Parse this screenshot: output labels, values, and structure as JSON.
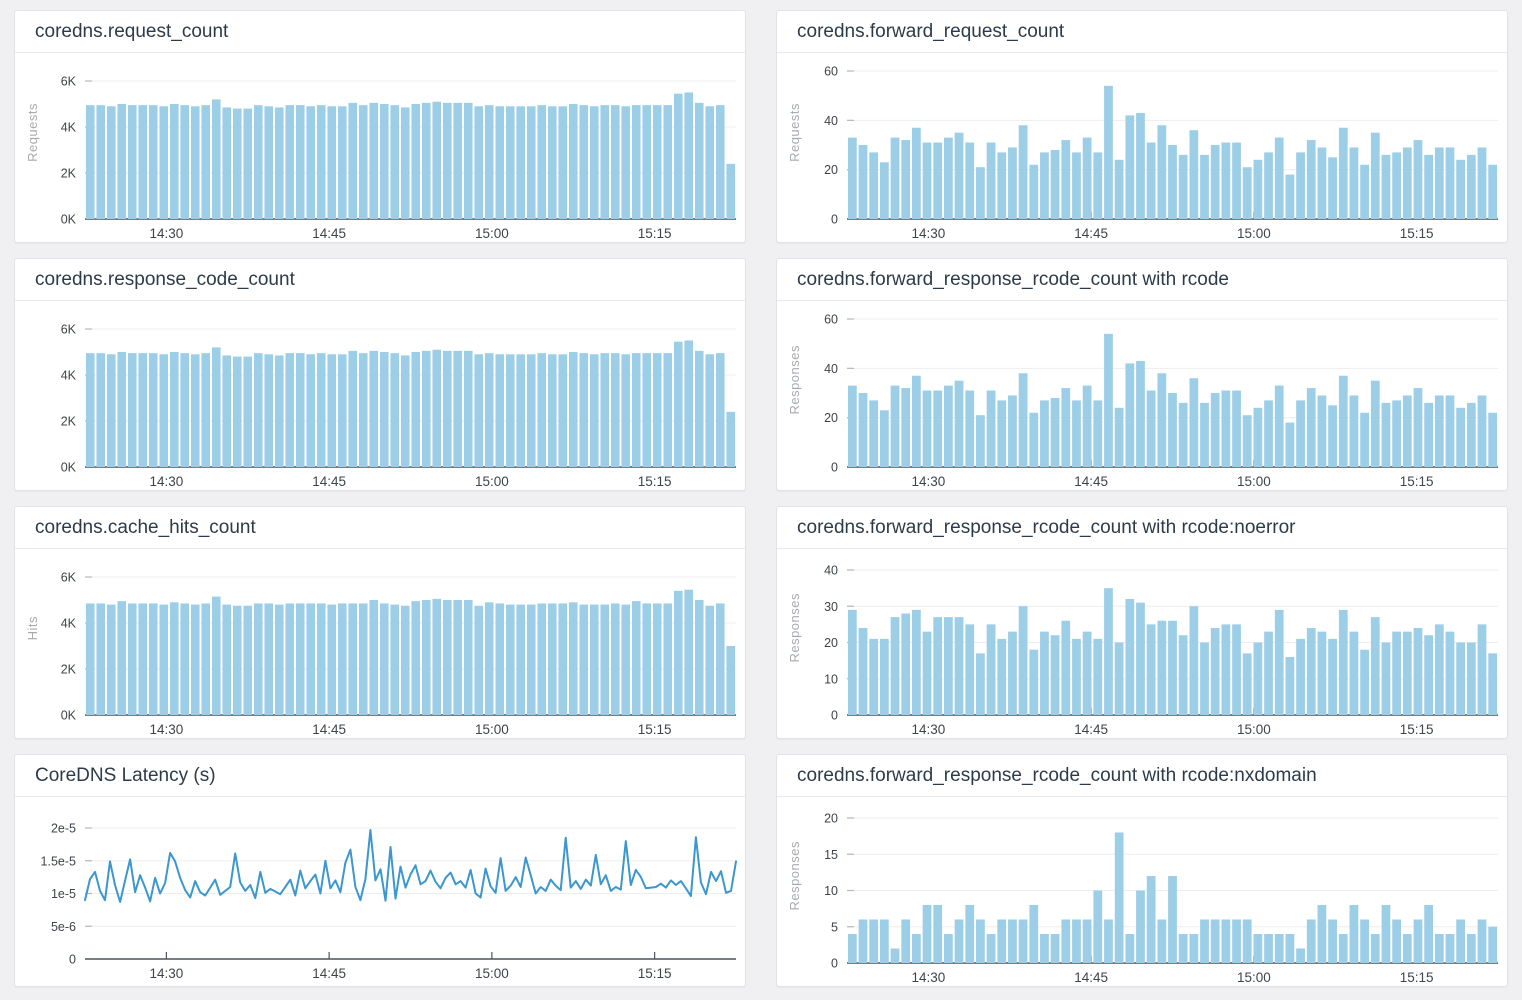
{
  "page": {
    "background_color": "#f0f0f2",
    "card_background": "#ffffff",
    "card_border_color": "#e2e3e7"
  },
  "colors": {
    "bar_fill": "#9ccee8",
    "line_stroke": "#3b97cd",
    "title_text": "#2d3b49",
    "tick_text": "#3e444b",
    "axis_unit_text": "#a7abb0",
    "gridline": "#ededef",
    "axis_line": "#4d545b"
  },
  "chart_data": [
    {
      "type": "bar",
      "title": "coredns.request_count",
      "xlabel": "",
      "ylabel": "Requests",
      "ylim": [
        0,
        6000
      ],
      "ytick_values": [
        0,
        2000,
        4000,
        6000
      ],
      "ytick_labels": [
        "0K",
        "2K",
        "4K",
        "6K"
      ],
      "x_tick_labels": [
        "14:30",
        "14:45",
        "15:00",
        "15:15"
      ],
      "value_unit": "K requests per interval",
      "values": [
        4.95,
        4.95,
        4.9,
        5.0,
        4.95,
        4.95,
        4.95,
        4.9,
        5.0,
        4.95,
        4.9,
        4.95,
        5.2,
        4.85,
        4.8,
        4.8,
        4.95,
        4.9,
        4.85,
        4.95,
        4.95,
        4.9,
        4.95,
        4.9,
        4.9,
        5.05,
        4.95,
        5.05,
        5.0,
        4.95,
        4.85,
        5.0,
        5.05,
        5.1,
        5.05,
        5.05,
        5.05,
        4.9,
        4.95,
        4.9,
        4.9,
        4.9,
        4.9,
        4.95,
        4.9,
        4.9,
        5.0,
        4.95,
        4.9,
        4.95,
        4.95,
        4.9,
        4.95,
        4.95,
        4.95,
        4.95,
        5.45,
        5.5,
        5.05,
        4.9,
        4.95,
        2.4
      ],
      "value_scale": 1000
    },
    {
      "type": "bar",
      "title": "coredns.forward_request_count",
      "xlabel": "",
      "ylabel": "Requests",
      "ylim": [
        0,
        60
      ],
      "ytick_values": [
        0,
        20,
        40,
        60
      ],
      "ytick_labels": [
        "0",
        "20",
        "40",
        "60"
      ],
      "x_tick_labels": [
        "14:30",
        "14:45",
        "15:00",
        "15:15"
      ],
      "value_unit": "requests per interval",
      "values": [
        33,
        30,
        27,
        23,
        33,
        32,
        37,
        31,
        31,
        33,
        35,
        31,
        21,
        31,
        27,
        29,
        38,
        22,
        27,
        28,
        32,
        27,
        33,
        27,
        54,
        24,
        42,
        43,
        31,
        38,
        30,
        26,
        36,
        26,
        30,
        31,
        31,
        21,
        24,
        27,
        33,
        18,
        27,
        32,
        29,
        25,
        37,
        29,
        22,
        35,
        26,
        27,
        29,
        32,
        26,
        29,
        29,
        24,
        26,
        29,
        22
      ],
      "value_scale": 1
    },
    {
      "type": "bar",
      "title": "coredns.response_code_count",
      "xlabel": "",
      "ylabel": "",
      "ylim": [
        0,
        6000
      ],
      "ytick_values": [
        0,
        2000,
        4000,
        6000
      ],
      "ytick_labels": [
        "0K",
        "2K",
        "4K",
        "6K"
      ],
      "x_tick_labels": [
        "14:30",
        "14:45",
        "15:00",
        "15:15"
      ],
      "value_unit": "K responses per interval",
      "values": [
        4.95,
        4.95,
        4.9,
        5.0,
        4.95,
        4.95,
        4.95,
        4.9,
        5.0,
        4.95,
        4.9,
        4.95,
        5.2,
        4.85,
        4.8,
        4.8,
        4.95,
        4.9,
        4.85,
        4.95,
        4.95,
        4.9,
        4.95,
        4.9,
        4.9,
        5.05,
        4.95,
        5.05,
        5.0,
        4.95,
        4.85,
        5.0,
        5.05,
        5.1,
        5.05,
        5.05,
        5.05,
        4.9,
        4.95,
        4.9,
        4.9,
        4.9,
        4.9,
        4.95,
        4.9,
        4.9,
        5.0,
        4.95,
        4.9,
        4.95,
        4.95,
        4.9,
        4.95,
        4.95,
        4.95,
        4.95,
        5.45,
        5.5,
        5.05,
        4.9,
        4.95,
        2.4
      ],
      "value_scale": 1000
    },
    {
      "type": "bar",
      "title": "coredns.forward_response_rcode_count with rcode",
      "xlabel": "",
      "ylabel": "Responses",
      "ylim": [
        0,
        60
      ],
      "ytick_values": [
        0,
        20,
        40,
        60
      ],
      "ytick_labels": [
        "0",
        "20",
        "40",
        "60"
      ],
      "x_tick_labels": [
        "14:30",
        "14:45",
        "15:00",
        "15:15"
      ],
      "value_unit": "responses per interval",
      "values": [
        33,
        30,
        27,
        23,
        33,
        32,
        37,
        31,
        31,
        33,
        35,
        31,
        21,
        31,
        27,
        29,
        38,
        22,
        27,
        28,
        32,
        27,
        33,
        27,
        54,
        24,
        42,
        43,
        31,
        38,
        30,
        26,
        36,
        26,
        30,
        31,
        31,
        21,
        24,
        27,
        33,
        18,
        27,
        32,
        29,
        25,
        37,
        29,
        22,
        35,
        26,
        27,
        29,
        32,
        26,
        29,
        29,
        24,
        26,
        29,
        22
      ],
      "value_scale": 1
    },
    {
      "type": "bar",
      "title": "coredns.cache_hits_count",
      "xlabel": "",
      "ylabel": "Hits",
      "ylim": [
        0,
        6000
      ],
      "ytick_values": [
        0,
        2000,
        4000,
        6000
      ],
      "ytick_labels": [
        "0K",
        "2K",
        "4K",
        "6K"
      ],
      "x_tick_labels": [
        "14:30",
        "14:45",
        "15:00",
        "15:15"
      ],
      "value_unit": "K hits per interval",
      "values": [
        4.85,
        4.85,
        4.8,
        4.95,
        4.85,
        4.85,
        4.85,
        4.8,
        4.9,
        4.85,
        4.8,
        4.85,
        5.15,
        4.8,
        4.75,
        4.75,
        4.85,
        4.85,
        4.8,
        4.85,
        4.85,
        4.85,
        4.85,
        4.8,
        4.85,
        4.85,
        4.85,
        5.0,
        4.85,
        4.8,
        4.75,
        4.95,
        5.0,
        5.05,
        5.0,
        5.0,
        5.0,
        4.75,
        4.9,
        4.85,
        4.8,
        4.8,
        4.8,
        4.85,
        4.85,
        4.85,
        4.9,
        4.8,
        4.8,
        4.8,
        4.85,
        4.8,
        4.95,
        4.85,
        4.85,
        4.85,
        5.4,
        5.45,
        5.0,
        4.75,
        4.85,
        3.0
      ],
      "value_scale": 1000
    },
    {
      "type": "bar",
      "title": "coredns.forward_response_rcode_count with rcode:noerror",
      "xlabel": "",
      "ylabel": "Responses",
      "ylim": [
        0,
        40
      ],
      "ytick_values": [
        0,
        10,
        20,
        30,
        40
      ],
      "ytick_labels": [
        "0",
        "10",
        "20",
        "30",
        "40"
      ],
      "x_tick_labels": [
        "14:30",
        "14:45",
        "15:00",
        "15:15"
      ],
      "value_unit": "responses per interval",
      "values": [
        29,
        24,
        21,
        21,
        27,
        28,
        29,
        23,
        27,
        27,
        27,
        25,
        17,
        25,
        21,
        23,
        30,
        18,
        23,
        22,
        26,
        21,
        23,
        21,
        35,
        20,
        32,
        31,
        25,
        26,
        26,
        22,
        30,
        20,
        24,
        25,
        25,
        17,
        20,
        23,
        29,
        16,
        21,
        24,
        23,
        21,
        29,
        23,
        18,
        27,
        20,
        23,
        23,
        24,
        22,
        25,
        23,
        20,
        20,
        25,
        17
      ],
      "value_scale": 1
    },
    {
      "type": "line",
      "title": "CoreDNS Latency (s)",
      "xlabel": "",
      "ylabel": "",
      "ylim": [
        0,
        2e-05
      ],
      "ytick_values": [
        0,
        5e-06,
        1e-05,
        1.5e-05,
        2e-05
      ],
      "ytick_labels": [
        "0",
        "5e-6",
        "1e-5",
        "1.5e-5",
        "2e-5"
      ],
      "x_tick_labels": [
        "14:30",
        "14:45",
        "15:00",
        "15:15"
      ],
      "value_unit": "seconds",
      "values": [
        9e-06,
        1.22e-05,
        1.33e-05,
        1.04e-05,
        9e-06,
        1.49e-05,
        1.13e-05,
        8.7e-06,
        1.2e-05,
        1.52e-05,
        1.02e-05,
        1.28e-05,
        1.09e-05,
        8.8e-06,
        1.24e-05,
        1e-05,
        1.16e-05,
        1.62e-05,
        1.49e-05,
        1.24e-05,
        1.05e-05,
        9.4e-06,
        1.19e-05,
        1.02e-05,
        9.7e-06,
        1.09e-05,
        1.21e-05,
        9.8e-06,
        1.04e-05,
        1.1e-05,
        1.61e-05,
        1.17e-05,
        1.04e-05,
        1.13e-05,
        9.3e-06,
        1.33e-05,
        1.01e-05,
        1.07e-05,
        1.03e-05,
        9.9e-06,
        1.1e-05,
        1.21e-05,
        9.7e-06,
        1.35e-05,
        1.08e-05,
        1.19e-05,
        1.29e-05,
        1e-05,
        1.5e-05,
        1.08e-05,
        1.2e-05,
        1.02e-05,
        1.47e-05,
        1.67e-05,
        1.1e-05,
        9e-06,
        1.22e-05,
        1.97e-05,
        1.2e-05,
        1.37e-05,
        8.9e-06,
        1.71e-05,
        9.2e-06,
        1.41e-05,
        1.09e-05,
        1.29e-05,
        1.43e-05,
        1.14e-05,
        1.19e-05,
        1.35e-05,
        1.18e-05,
        1.08e-05,
        1.24e-05,
        1.32e-05,
        1.14e-05,
        1.19e-05,
        1.09e-05,
        1.36e-05,
        1e-05,
        9.4e-06,
        1.38e-05,
        1.11e-05,
        1.01e-05,
        1.54e-05,
        1.04e-05,
        1.12e-05,
        1.25e-05,
        1.1e-05,
        1.55e-05,
        1.28e-05,
        1e-05,
        1.1e-05,
        1.04e-05,
        1.21e-05,
        1.12e-05,
        1.05e-05,
        1.85e-05,
        1.09e-05,
        1.19e-05,
        1.07e-05,
        1.21e-05,
        1.12e-05,
        1.59e-05,
        1.14e-05,
        1.28e-05,
        1.04e-05,
        1.1e-05,
        1.06e-05,
        1.8e-05,
        1.13e-05,
        1.36e-05,
        1.25e-05,
        1.08e-05,
        1.09e-05,
        1.1e-05,
        1.15e-05,
        1.09e-05,
        1.2e-05,
        1.13e-05,
        1.19e-05,
        1.08e-05,
        9.6e-06,
        1.86e-05,
        1.17e-05,
        9.9e-06,
        1.33e-05,
        1.19e-05,
        1.34e-05,
        1.01e-05,
        1.04e-05,
        1.49e-05
      ],
      "value_scale": 1
    },
    {
      "type": "bar",
      "title": "coredns.forward_response_rcode_count with rcode:nxdomain",
      "xlabel": "",
      "ylabel": "Responses",
      "ylim": [
        0,
        20
      ],
      "ytick_values": [
        0,
        5,
        10,
        15,
        20
      ],
      "ytick_labels": [
        "0",
        "5",
        "10",
        "15",
        "20"
      ],
      "x_tick_labels": [
        "14:30",
        "14:45",
        "15:00",
        "15:15"
      ],
      "value_unit": "responses per interval",
      "values": [
        4,
        6,
        6,
        6,
        2,
        6,
        4,
        8,
        8,
        4,
        6,
        8,
        6,
        4,
        6,
        6,
        6,
        8,
        4,
        4,
        6,
        6,
        6,
        10,
        6,
        18,
        4,
        10,
        12,
        6,
        12,
        4,
        4,
        6,
        6,
        6,
        6,
        6,
        4,
        4,
        4,
        4,
        2,
        6,
        8,
        6,
        4,
        8,
        6,
        4,
        8,
        6,
        4,
        6,
        8,
        4,
        4,
        6,
        4,
        6,
        5
      ],
      "value_scale": 1
    }
  ]
}
